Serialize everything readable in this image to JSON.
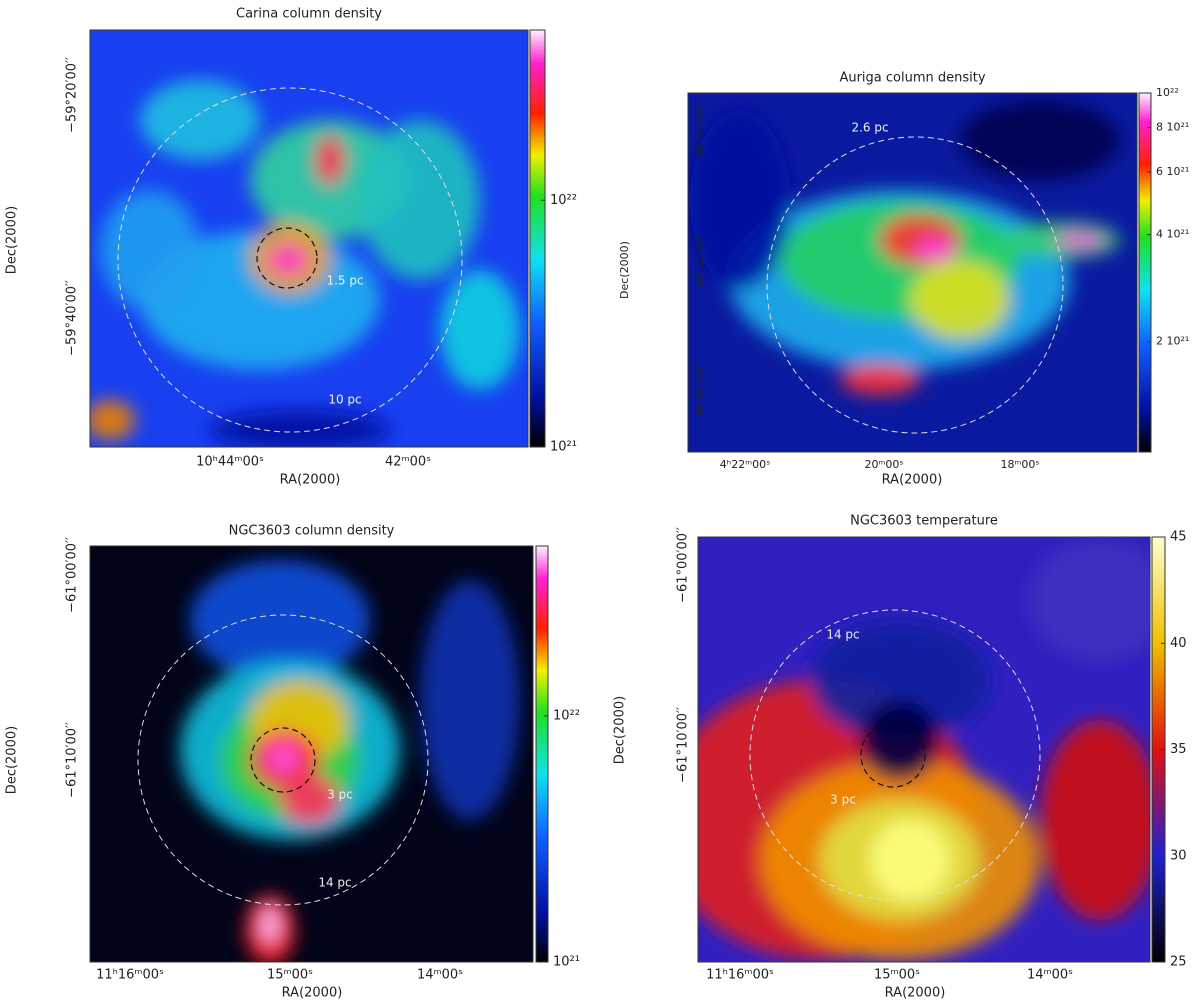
{
  "panels": [
    {
      "title": "Carina column density",
      "xlabel": "RA(2000)",
      "ylabel": "Dec(2000)",
      "xticks": [
        "10ʰ44ᵐ00ˢ",
        "42ᵐ00ˢ"
      ],
      "yticks": [
        "−59°20′00′′",
        "−59°40′00′′"
      ],
      "annotations": [
        "1.5 pc",
        "10 pc"
      ],
      "colorbar": {
        "scale": "log",
        "lim": [
          1e+21,
          4.9e+22
        ],
        "ticks": [
          {
            "value": 1e+22,
            "label": "10²²"
          },
          {
            "value": 1e+21,
            "label": "10²¹"
          }
        ]
      }
    },
    {
      "title": "Auriga column density",
      "xlabel": "RA(2000)",
      "ylabel": "Dec(2000)",
      "xticks": [
        "4ʰ22ᵐ00ˢ",
        "20ᵐ00ˢ",
        "18ᵐ00ˢ"
      ],
      "yticks": [
        "38°40′00′′",
        "38°20′00′′",
        "38°00′00′′"
      ],
      "annotations": [
        "2.6 pc"
      ],
      "colorbar": {
        "scale": "log",
        "lim": [
          9.8e+20,
          1e+22
        ],
        "ticks": [
          {
            "value": 1e+22,
            "label": "10²²"
          },
          {
            "value": 8e+21,
            "label": "8 10²¹"
          },
          {
            "value": 6e+21,
            "label": "6 10²¹"
          },
          {
            "value": 4e+21,
            "label": "4 10²¹"
          },
          {
            "value": 2e+21,
            "label": "2 10²¹"
          }
        ]
      }
    },
    {
      "title": "NGC3603 column density",
      "xlabel": "RA(2000)",
      "ylabel": "Dec(2000)",
      "xticks": [
        "11ʰ16ᵐ00ˢ",
        "15ᵐ00ˢ",
        "14ᵐ00ˢ"
      ],
      "yticks": [
        "−61°00′00′′",
        "−61°10′00′′"
      ],
      "annotations": [
        "3 pc",
        "14 pc"
      ],
      "colorbar": {
        "scale": "log",
        "lim": [
          1e+21,
          4.9e+22
        ],
        "ticks": [
          {
            "value": 1e+22,
            "label": "10²²"
          },
          {
            "value": 1e+21,
            "label": "10²¹"
          }
        ]
      }
    },
    {
      "title": "NGC3603 temperature",
      "xlabel": "RA(2000)",
      "ylabel": "Dec(2000)",
      "xticks": [
        "11ʰ16ᵐ00ˢ",
        "15ᵐ00ˢ",
        "14ᵐ00ˢ"
      ],
      "yticks": [
        "−61°00′00′′",
        "−61°10′00′′"
      ],
      "annotations": [
        "14 pc",
        "3 pc"
      ],
      "colorbar": {
        "scale": "linear",
        "lim": [
          25,
          45
        ],
        "ticks": [
          45,
          40,
          35,
          30,
          25
        ]
      }
    }
  ]
}
